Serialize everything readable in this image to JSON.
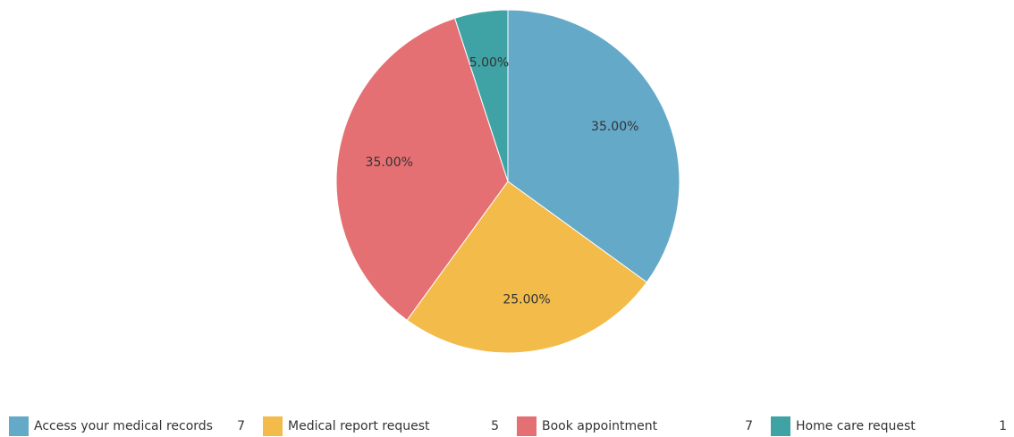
{
  "chart_data": {
    "type": "pie",
    "categories": [
      "Access your medical records",
      "Medical report request",
      "Book appointment",
      "Home care request"
    ],
    "values": [
      35,
      25,
      35,
      5
    ],
    "value_labels": [
      "35.00%",
      "25.00%",
      "35.00%",
      "5.00%"
    ],
    "counts": [
      7,
      5,
      7,
      1
    ],
    "colors": [
      "#64a9c8",
      "#f2bb4a",
      "#e57074",
      "#3fa3a5"
    ],
    "legend": "bottom"
  }
}
